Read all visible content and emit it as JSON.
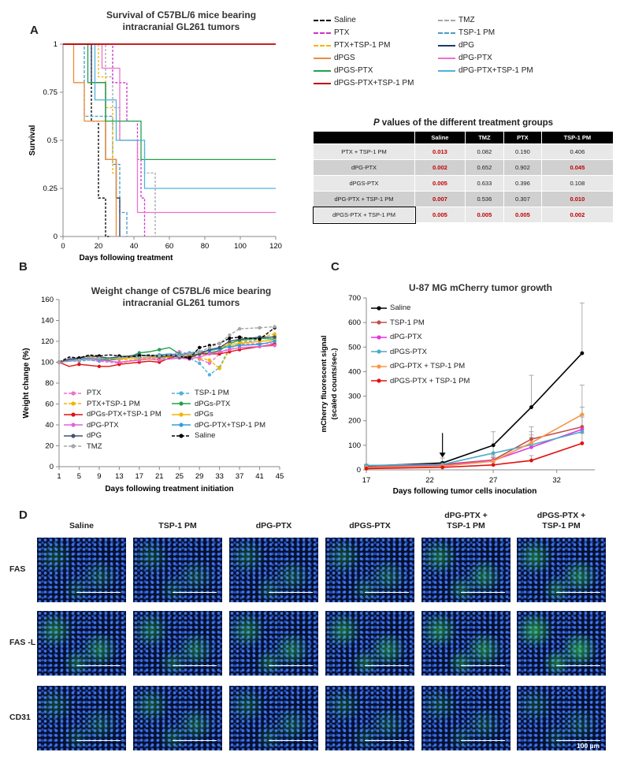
{
  "panel_labels": {
    "a": "A",
    "b": "B",
    "c": "C",
    "d": "D"
  },
  "chart_data": [
    {
      "id": "A",
      "type": "line",
      "title_line1": "Survival of C57BL/6 mice bearing",
      "title_line2": "intracranial GL261 tumors",
      "xlabel": "Days following treatment",
      "ylabel": "Survival",
      "xlim": [
        0,
        120
      ],
      "ylim": [
        0,
        1
      ],
      "xticks": [
        "0",
        "20",
        "40",
        "60",
        "80",
        "100",
        "120"
      ],
      "yticks": [
        "0",
        "0.25",
        "0.5",
        "0.75",
        "1"
      ],
      "series": [
        {
          "name": "Saline",
          "color": "#000000",
          "dash": "3,2",
          "steps": [
            [
              0,
              1
            ],
            [
              16,
              1
            ],
            [
              16,
              0.6
            ],
            [
              20,
              0.6
            ],
            [
              20,
              0.2
            ],
            [
              24,
              0.2
            ],
            [
              24,
              0.0
            ],
            [
              26,
              0
            ]
          ]
        },
        {
          "name": "TMZ",
          "color": "#a6a6a6",
          "dash": "3,2",
          "steps": [
            [
              0,
              1
            ],
            [
              24,
              1
            ],
            [
              24,
              0.83
            ],
            [
              28,
              0.83
            ],
            [
              28,
              0.67
            ],
            [
              32,
              0.67
            ],
            [
              32,
              0.5
            ],
            [
              46,
              0.5
            ],
            [
              46,
              0.33
            ],
            [
              52,
              0.33
            ],
            [
              52,
              0
            ]
          ]
        },
        {
          "name": "PTX",
          "color": "#cc33cc",
          "dash": "3,2",
          "steps": [
            [
              0,
              1
            ],
            [
              28,
              1
            ],
            [
              28,
              0.8
            ],
            [
              36,
              0.8
            ],
            [
              36,
              0.6
            ],
            [
              42,
              0.6
            ],
            [
              42,
              0.4
            ],
            [
              44,
              0.4
            ],
            [
              44,
              0.2
            ],
            [
              46,
              0.2
            ],
            [
              46,
              0
            ]
          ]
        },
        {
          "name": "TSP-1 PM",
          "color": "#4a9bc7",
          "dash": "4,2",
          "steps": [
            [
              0,
              1
            ],
            [
              12,
              1
            ],
            [
              12,
              0.625
            ],
            [
              28,
              0.625
            ],
            [
              28,
              0.375
            ],
            [
              32,
              0.375
            ],
            [
              32,
              0.125
            ],
            [
              36,
              0.125
            ],
            [
              36,
              0
            ]
          ]
        },
        {
          "name": "PTX+TSP-1 PM",
          "color": "#f4b400",
          "dash": "3,2",
          "steps": [
            [
              0,
              1
            ],
            [
              20,
              1
            ],
            [
              20,
              0.83
            ],
            [
              24,
              0.83
            ],
            [
              24,
              0.67
            ],
            [
              28,
              0.67
            ],
            [
              28,
              0.33
            ],
            [
              30,
              0.33
            ],
            [
              30,
              0
            ]
          ]
        },
        {
          "name": "dPG",
          "color": "#203864",
          "dash": "",
          "steps": [
            [
              0,
              1
            ],
            [
              16,
              1
            ],
            [
              16,
              0.8
            ],
            [
              24,
              0.8
            ],
            [
              24,
              0.4
            ],
            [
              30,
              0.4
            ],
            [
              30,
              0.2
            ],
            [
              32,
              0.2
            ],
            [
              32,
              0
            ]
          ]
        },
        {
          "name": "dPGS",
          "color": "#ed8b3a",
          "dash": "",
          "steps": [
            [
              0,
              1
            ],
            [
              6,
              1
            ],
            [
              6,
              0.8
            ],
            [
              12,
              0.8
            ],
            [
              12,
              0.6
            ],
            [
              24,
              0.6
            ],
            [
              24,
              0.4
            ],
            [
              30,
              0.4
            ],
            [
              30,
              0
            ]
          ]
        },
        {
          "name": "dPG-PTX",
          "color": "#f06fd0",
          "dash": "",
          "steps": [
            [
              0,
              1
            ],
            [
              22,
              1
            ],
            [
              22,
              0.875
            ],
            [
              32,
              0.875
            ],
            [
              32,
              0.5
            ],
            [
              42,
              0.5
            ],
            [
              42,
              0.125
            ],
            [
              120,
              0.125
            ]
          ]
        },
        {
          "name": "dPGS-PTX",
          "color": "#22a04a",
          "dash": "",
          "steps": [
            [
              0,
              1
            ],
            [
              14,
              1
            ],
            [
              14,
              0.8
            ],
            [
              24,
              0.8
            ],
            [
              24,
              0.6
            ],
            [
              44,
              0.6
            ],
            [
              44,
              0.4
            ],
            [
              120,
              0.4
            ]
          ]
        },
        {
          "name": "dPG-PTX+TSP-1 PM",
          "color": "#4eb3d9",
          "dash": "",
          "steps": [
            [
              0,
              1
            ],
            [
              18,
              1
            ],
            [
              18,
              0.71
            ],
            [
              30,
              0.71
            ],
            [
              30,
              0.5
            ],
            [
              46,
              0.5
            ],
            [
              46,
              0.25
            ],
            [
              120,
              0.25
            ]
          ]
        },
        {
          "name": "dPGS-PTX+TSP-1 PM",
          "color": "#c00000",
          "dash": "",
          "steps": [
            [
              0,
              1
            ],
            [
              120,
              1
            ]
          ]
        }
      ]
    },
    {
      "id": "B",
      "type": "line",
      "title_line1": "Weight change of C57BL/6 mice bearing",
      "title_line2": "intracranial GL261 tumors",
      "xlabel": "Days following treatment initiation",
      "ylabel": "Weight change (%)",
      "xlim": [
        1,
        45
      ],
      "ylim": [
        0,
        160
      ],
      "xticks": [
        "1",
        "5",
        "9",
        "13",
        "17",
        "21",
        "25",
        "29",
        "33",
        "37",
        "41",
        "45"
      ],
      "yticks": [
        "0",
        "20",
        "40",
        "60",
        "80",
        "100",
        "120",
        "140",
        "160"
      ],
      "x": [
        1,
        3,
        5,
        7,
        9,
        11,
        13,
        15,
        17,
        19,
        21,
        23,
        25,
        27,
        29,
        31,
        33,
        35,
        37,
        41,
        44
      ],
      "series": [
        {
          "name": "PTX",
          "color": "#f06fd0",
          "dash": "4,2",
          "values": [
            100,
            104,
            103,
            102,
            101,
            100,
            99,
            101,
            103,
            104,
            103,
            106,
            110,
            108,
            103,
            99,
            108,
            114,
            117,
            118,
            118
          ]
        },
        {
          "name": "TSP-1 PM",
          "color": "#4eb3d9",
          "dash": "4,2",
          "values": [
            100,
            101,
            101,
            102,
            101,
            102,
            104,
            106,
            105,
            104,
            104,
            103,
            104,
            104,
            99,
            88,
            95,
            114,
            118,
            122,
            125
          ]
        },
        {
          "name": "PTX+TSP-1 PM",
          "color": "#f4b400",
          "dash": "4,2",
          "values": [
            100,
            103,
            104,
            105,
            104,
            103,
            103,
            102,
            103,
            104,
            104,
            105,
            106,
            106,
            104,
            102,
            94,
            112,
            119,
            124,
            127
          ]
        },
        {
          "name": "dPGs-PTX",
          "color": "#22a04a",
          "dash": "",
          "values": [
            100,
            101,
            103,
            104,
            103,
            102,
            103,
            105,
            109,
            110,
            112,
            114,
            108,
            107,
            108,
            109,
            111,
            118,
            121,
            123,
            122
          ]
        },
        {
          "name": "dPGs-PTX+TSP-1 PM",
          "color": "#e11111",
          "dash": "",
          "values": [
            100,
            96,
            98,
            97,
            96,
            96,
            98,
            99,
            100,
            101,
            100,
            104,
            106,
            105,
            108,
            108,
            108,
            110,
            112,
            115,
            117
          ]
        },
        {
          "name": "dPGs",
          "color": "#f4b400",
          "dash": "",
          "values": [
            100,
            102,
            104,
            106,
            105,
            104,
            103,
            104,
            104,
            105,
            104,
            105,
            106,
            104,
            108,
            112,
            114,
            117,
            118,
            120,
            121
          ]
        },
        {
          "name": "dPG-PTX",
          "color": "#e464d0",
          "dash": "",
          "values": [
            100,
            101,
            102,
            103,
            102,
            101,
            100,
            101,
            102,
            103,
            102,
            103,
            104,
            103,
            105,
            108,
            110,
            112,
            114,
            115,
            116
          ]
        },
        {
          "name": "dPG-PTX+TSP-1 PM",
          "color": "#2e9fe0",
          "dash": "",
          "values": [
            100,
            102,
            103,
            104,
            103,
            104,
            105,
            106,
            107,
            106,
            107,
            108,
            107,
            109,
            110,
            111,
            113,
            115,
            116,
            117,
            120
          ]
        },
        {
          "name": "dPG",
          "color": "#44546a",
          "dash": "",
          "values": [
            100,
            103,
            104,
            106,
            105,
            104,
            105,
            106,
            107,
            106,
            105,
            106,
            105,
            104,
            108,
            112,
            114,
            120,
            122,
            124,
            124
          ]
        },
        {
          "name": "Saline",
          "color": "#000000",
          "dash": "4,2",
          "values": [
            100,
            105,
            104,
            107,
            106,
            107,
            106,
            105,
            106,
            107,
            106,
            107,
            106,
            104,
            114,
            116,
            118,
            123,
            124,
            122,
            133
          ]
        },
        {
          "name": "TMZ",
          "color": "#a6a6a6",
          "dash": "4,2",
          "values": [
            100,
            101,
            102,
            103,
            104,
            103,
            104,
            105,
            104,
            105,
            106,
            107,
            106,
            108,
            110,
            114,
            118,
            126,
            132,
            133,
            134
          ]
        }
      ]
    },
    {
      "id": "C",
      "type": "line",
      "title": "U-87 MG mCherry tumor growth",
      "xlabel": "Days following tumor cells inoculation",
      "ylabel_line1": "mCherry fluorescent signal",
      "ylabel_line2": "(scaled counts/sec.)",
      "xlim": [
        17,
        35
      ],
      "ylim": [
        0,
        700
      ],
      "xticks": [
        "17",
        "22",
        "27",
        "32"
      ],
      "yticks": [
        "0",
        "100",
        "200",
        "300",
        "400",
        "500",
        "600",
        "700"
      ],
      "x": [
        17,
        23,
        27,
        30,
        34
      ],
      "arrow_day": 23,
      "series": [
        {
          "name": "Saline",
          "color": "#000000",
          "values": [
            15,
            28,
            100,
            255,
            475
          ],
          "err": [
            5,
            20,
            55,
            130,
            205
          ]
        },
        {
          "name": "TSP-1 PM",
          "color": "#c0504d",
          "values": [
            12,
            22,
            40,
            125,
            175
          ],
          "err": [
            4,
            10,
            20,
            50,
            80
          ]
        },
        {
          "name": "dPG-PTX",
          "color": "#e632e6",
          "values": [
            10,
            18,
            38,
            92,
            165
          ],
          "err": [
            4,
            8,
            15,
            40,
            60
          ]
        },
        {
          "name": "dPGS-PTX",
          "color": "#4bacc6",
          "values": [
            18,
            22,
            68,
            102,
            155
          ],
          "err": [
            5,
            10,
            30,
            40,
            60
          ]
        },
        {
          "name": "dPG-PTX + TSP-1 PM",
          "color": "#f79646",
          "values": [
            9,
            15,
            35,
            110,
            225
          ],
          "err": [
            4,
            8,
            15,
            45,
            120
          ]
        },
        {
          "name": "dPGS-PTX + TSP-1 PM",
          "color": "#e11111",
          "values": [
            5,
            10,
            20,
            38,
            108
          ],
          "err": [
            3,
            5,
            10,
            20,
            40
          ]
        }
      ]
    }
  ],
  "pvalues": {
    "title_italic": "P",
    "title_rest": " values of the different treatment groups",
    "columns": [
      "",
      "Saline",
      "TMZ",
      "PTX",
      "TSP-1 PM"
    ],
    "rows": [
      {
        "group": "PTX + TSP-1 PM",
        "vals": [
          "0.013",
          "0.082",
          "0.190",
          "0.406"
        ],
        "sig": [
          true,
          false,
          false,
          false
        ]
      },
      {
        "group": "dPG-PTX",
        "vals": [
          "0.002",
          "0.652",
          "0.902",
          "0.045"
        ],
        "sig": [
          true,
          false,
          false,
          true
        ]
      },
      {
        "group": "dPGS-PTX",
        "vals": [
          "0.005",
          "0.633",
          "0.396",
          "0.108"
        ],
        "sig": [
          true,
          false,
          false,
          false
        ]
      },
      {
        "group": "dPG-PTX + TSP-1 PM",
        "vals": [
          "0.007",
          "0.536",
          "0.307",
          "0.010"
        ],
        "sig": [
          true,
          false,
          false,
          true
        ]
      },
      {
        "group": "dPGS-PTX + TSP-1 PM",
        "vals": [
          "0.005",
          "0.005",
          "0.005",
          "0.002"
        ],
        "sig": [
          true,
          true,
          true,
          true
        ]
      }
    ]
  },
  "panelD": {
    "columns": [
      {
        "l1": "Saline",
        "l2": ""
      },
      {
        "l1": "TSP-1 PM",
        "l2": ""
      },
      {
        "l1": "dPG-PTX",
        "l2": ""
      },
      {
        "l1": "dPGS-PTX",
        "l2": ""
      },
      {
        "l1": "dPG-PTX +",
        "l2": "TSP-1 PM"
      },
      {
        "l1": "dPGS-PTX +",
        "l2": "TSP-1 PM"
      }
    ],
    "rows": [
      "FAS",
      "FAS -L",
      "CD31"
    ],
    "green_level": [
      [
        0.15,
        0.15,
        0.2,
        0.25,
        0.45,
        0.5
      ],
      [
        0.5,
        0.4,
        0.45,
        0.5,
        0.6,
        0.8
      ],
      [
        0.15,
        0.3,
        0.2,
        0.15,
        0.15,
        0.1
      ]
    ],
    "scale_label": "100 µm"
  }
}
